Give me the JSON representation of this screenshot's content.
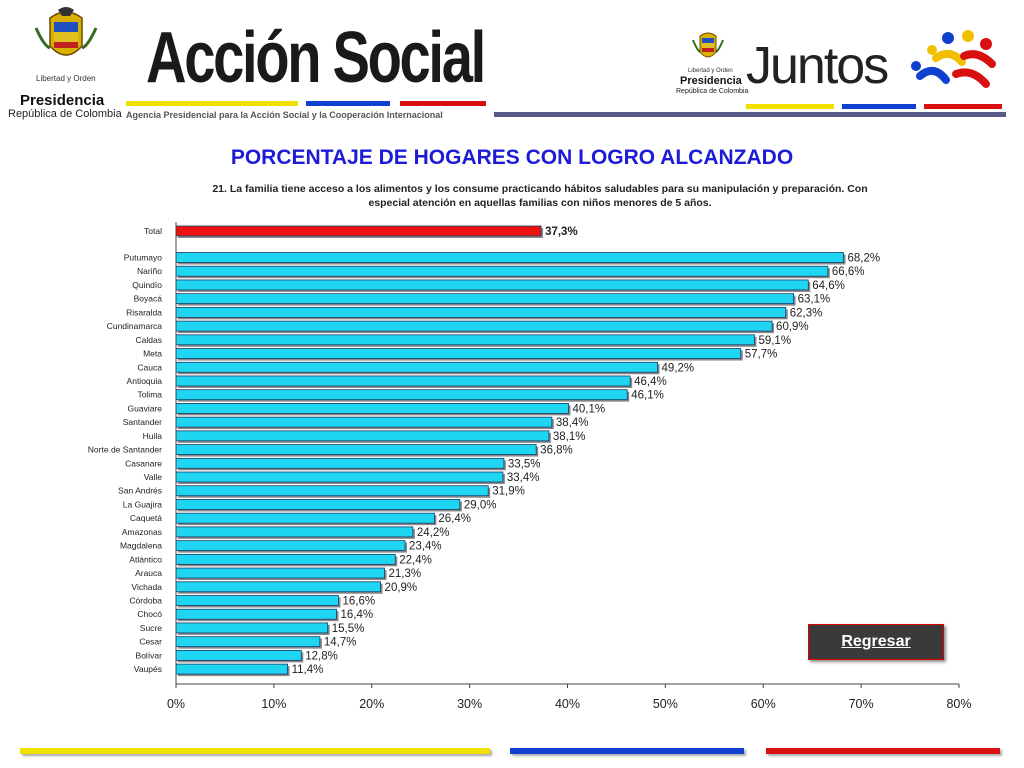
{
  "header": {
    "left_motto": "Libertad y Orden",
    "left_presidencia": "Presidencia",
    "left_republica": "República de Colombia",
    "brand_name": "Acción Social",
    "brand_subtitle": "Agencia Presidencial para la Acción Social y la Cooperación Internacional",
    "right_motto": "Libertad y Orden",
    "right_presidencia": "Presidencia",
    "right_republica": "República de Colombia",
    "juntos": "Juntos"
  },
  "colors": {
    "accent_blue": "#1c1cd8",
    "bar_cyan": "#1ed6f2",
    "bar_total": "#ee1111",
    "stripe_yellow": "#f0e000",
    "stripe_blue": "#1040d0",
    "stripe_red": "#d81010",
    "stripe_gray": "#6a6a9a"
  },
  "title": "PORCENTAJE DE HOGARES CON LOGRO ALCANZADO",
  "subtitle_line1": "21. La familia tiene acceso a los alimentos y los consume practicando hábitos saludables para su manipulación y preparación. Con",
  "subtitle_line2": "especial atención en aquellas familias con niños menores de 5 años.",
  "back_button": "Regresar",
  "chart_data": {
    "type": "bar",
    "orientation": "horizontal",
    "xlim": [
      0,
      80
    ],
    "x_ticks": [
      "0%",
      "10%",
      "20%",
      "30%",
      "40%",
      "50%",
      "60%",
      "70%",
      "80%"
    ],
    "grid": false,
    "total": {
      "category": "Total",
      "value": 37.3,
      "label": "37,3%"
    },
    "categories": [
      "Putumayo",
      "Nariño",
      "Quindío",
      "Boyacá",
      "Risaralda",
      "Cundinamarca",
      "Caldas",
      "Meta",
      "Cauca",
      "Antioquia",
      "Tolima",
      "Guaviare",
      "Santander",
      "Huila",
      "Norte de Santander",
      "Casanare",
      "Valle",
      "San Andrés",
      "La Guajira",
      "Caquetá",
      "Amazonas",
      "Magdalena",
      "Atlántico",
      "Arauca",
      "Vichada",
      "Córdoba",
      "Chocó",
      "Sucre",
      "Cesar",
      "Bolívar",
      "Vaupés"
    ],
    "values": [
      68.2,
      66.6,
      64.6,
      63.1,
      62.3,
      60.9,
      59.1,
      57.7,
      49.2,
      46.4,
      46.1,
      40.1,
      38.4,
      38.1,
      36.8,
      33.5,
      33.4,
      31.9,
      29.0,
      26.4,
      24.2,
      23.4,
      22.4,
      21.3,
      20.9,
      16.6,
      16.4,
      15.5,
      14.7,
      12.8,
      11.4
    ],
    "labels": [
      "68,2%",
      "66,6%",
      "64,6%",
      "63,1%",
      "62,3%",
      "60,9%",
      "59,1%",
      "57,7%",
      "49,2%",
      "46,4%",
      "46,1%",
      "40,1%",
      "38,4%",
      "38,1%",
      "36,8%",
      "33,5%",
      "33,4%",
      "31,9%",
      "29,0%",
      "26,4%",
      "24,2%",
      "23,4%",
      "22,4%",
      "21,3%",
      "20,9%",
      "16,6%",
      "16,4%",
      "15,5%",
      "14,7%",
      "12,8%",
      "11,4%"
    ]
  }
}
